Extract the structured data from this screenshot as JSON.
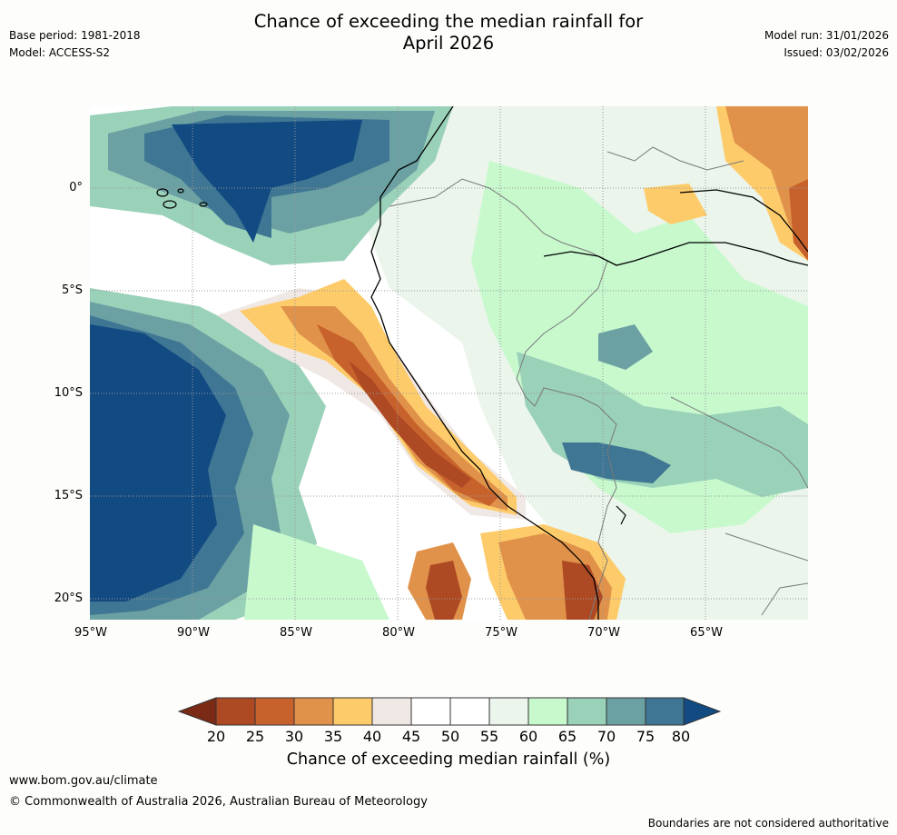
{
  "header": {
    "title_line1": "Chance of exceeding the median rainfall for",
    "title_line2": "April 2026",
    "base_period": "Base period: 1981-2018",
    "model": "Model: ACCESS-S2",
    "model_run": "Model run: 31/01/2026",
    "issued": "Issued: 03/02/2026"
  },
  "map": {
    "lat_labels": [
      "0°",
      "5°S",
      "10°S",
      "15°S",
      "20°S"
    ],
    "lon_labels": [
      "95°W",
      "90°W",
      "85°W",
      "80°W",
      "75°W",
      "70°W",
      "65°W"
    ]
  },
  "legend": {
    "ticks": [
      "20",
      "25",
      "30",
      "35",
      "40",
      "45",
      "50",
      "55",
      "60",
      "65",
      "70",
      "75",
      "80"
    ],
    "label": "Chance of exceeding median rainfall (%)",
    "colors": [
      "#7b2a15",
      "#ad4a24",
      "#c8622d",
      "#e0924a",
      "#fdcb6a",
      "#f0e8e4",
      "#ffffff",
      "#ffffff",
      "#ebf5eb",
      "#c7f9cd",
      "#9ad1b9",
      "#6ba1a3",
      "#3f7693",
      "#124a82"
    ]
  },
  "footer": {
    "url": "www.bom.gov.au/climate",
    "copyright": "© Commonwealth of Australia 2026, Australian Bureau of Meteorology",
    "disclaimer": "Boundaries are not considered authoritative"
  }
}
